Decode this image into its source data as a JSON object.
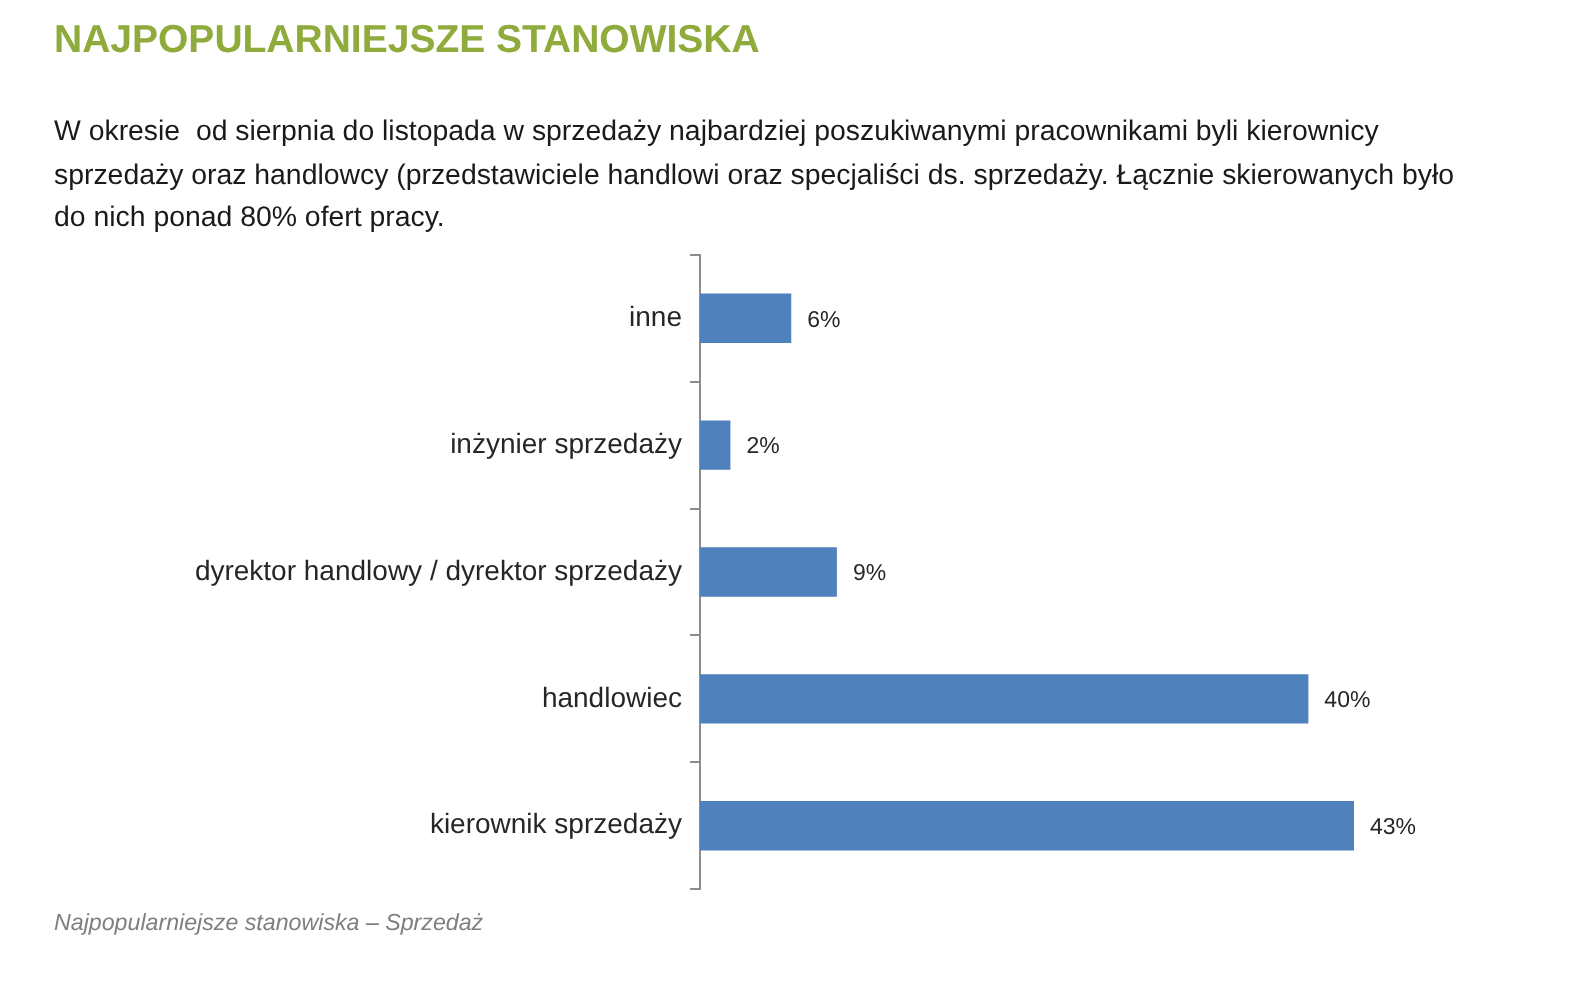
{
  "chart_data": {
    "type": "bar",
    "orientation": "horizontal",
    "title": "NAJPOPULARNIEJSZE STANOWISKA",
    "subtitle": "W okresie  od sierpnia do listopada w sprzedaży najbardziej poszukiwanymi pracownikami byli kierownicy sprzedaży oraz handlowcy (przedstawiciele handlowi oraz specjaliści ds. sprzedaży. Łącznie skierowanych było do nich ponad 80% ofert pracy.",
    "categories": [
      "inne",
      "inżynier sprzedaży",
      "dyrektor handlowy / dyrektor sprzedaży",
      "handlowiec",
      "kierownik sprzedaży"
    ],
    "values": [
      6,
      2,
      9,
      40,
      43
    ],
    "value_labels": [
      "6%",
      "2%",
      "9%",
      "40%",
      "43%"
    ],
    "color": "#4f81bd",
    "tick_labels": "y",
    "annotations": [
      "Najpopularniejsze stanowiska – Sprzedaż"
    ]
  }
}
